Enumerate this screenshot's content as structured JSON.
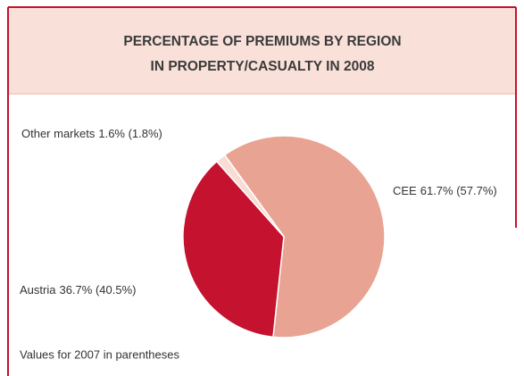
{
  "chart_data": {
    "type": "pie",
    "title": [
      "PERCENTAGE OF PREMIUMS BY REGION",
      "IN PROPERTY/CASUALTY IN 2008"
    ],
    "categories": [
      "CEE",
      "Austria",
      "Other markets"
    ],
    "values": [
      61.7,
      36.7,
      1.6
    ],
    "value_labels": [
      "61.7% (57.7%)",
      "36.7% (40.5%)",
      "1.6% (1.8%)"
    ],
    "colors": [
      "#e8a393",
      "#c4122f",
      "#f9ddd5"
    ],
    "note": "Values for 2007 in parentheses"
  }
}
